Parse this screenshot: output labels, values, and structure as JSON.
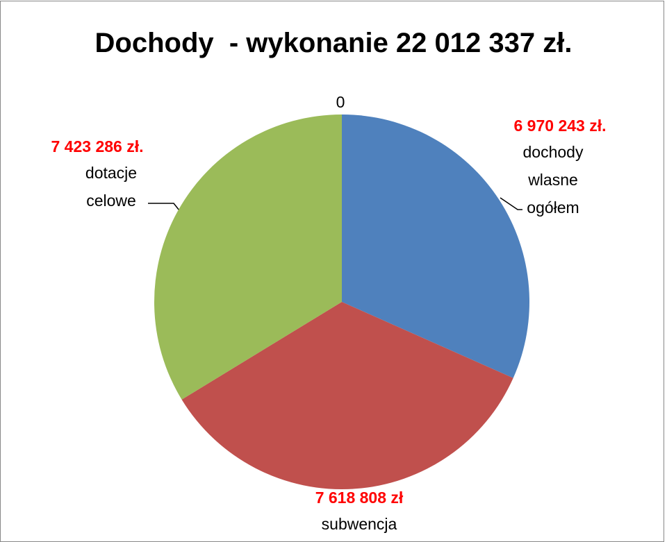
{
  "chart_data": {
    "type": "pie",
    "title": "Dochody  - wykonanie 22 012 337 zł.",
    "categories": [
      "dochody wlasne ogółem",
      "subwencja",
      "dotacje celowe",
      null
    ],
    "values": [
      6970243,
      7618808,
      7423286,
      0
    ],
    "value_labels": [
      "6 970 243 zł.",
      "7 618 808 zł",
      "7 423 286 zł.",
      "0"
    ],
    "colors": [
      "#4f81bd",
      "#c0504d",
      "#9bbb59",
      "#8064a2"
    ]
  }
}
